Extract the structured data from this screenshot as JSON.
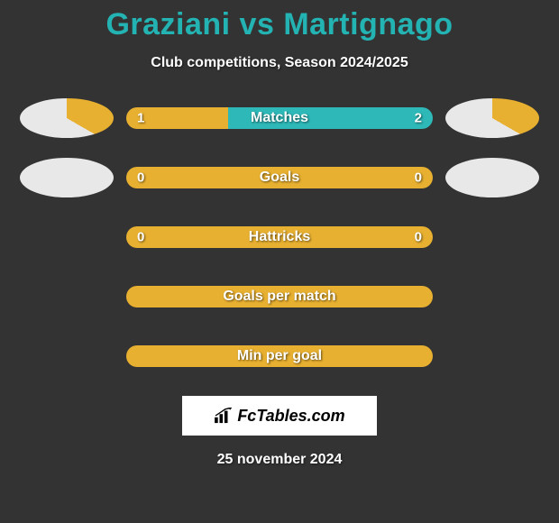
{
  "title": "Graziani vs Martignago",
  "subtitle": "Club competitions, Season 2024/2025",
  "date": "25 november 2024",
  "colors": {
    "background": "#333333",
    "title": "#24b3b3",
    "text": "#ffffff",
    "player1": "#e8b030",
    "player2": "#e8e8e8",
    "bar_player1": "#e8b030",
    "bar_player2": "#2eb8b8",
    "bar_neutral": "#e8b030",
    "logo_bg": "#ffffff",
    "logo_text": "#000000"
  },
  "logo": {
    "text": "FcTables.com"
  },
  "stats": [
    {
      "label": "Matches",
      "left_value": "1",
      "right_value": "2",
      "left_pct": 33.3,
      "show_values": true,
      "show_pies": true,
      "pie1_p1_pct": 33.3,
      "pie2_p1_pct": 33.3
    },
    {
      "label": "Goals",
      "left_value": "0",
      "right_value": "0",
      "left_pct": 0,
      "show_values": true,
      "show_pies": true,
      "pie1_p1_pct": 0,
      "pie2_p1_pct": 0
    },
    {
      "label": "Hattricks",
      "left_value": "0",
      "right_value": "0",
      "left_pct": 0,
      "show_values": true,
      "show_pies": false
    },
    {
      "label": "Goals per match",
      "left_value": "",
      "right_value": "",
      "left_pct": 0,
      "show_values": false,
      "show_pies": false
    },
    {
      "label": "Min per goal",
      "left_value": "",
      "right_value": "",
      "left_pct": 0,
      "show_values": false,
      "show_pies": false
    }
  ]
}
